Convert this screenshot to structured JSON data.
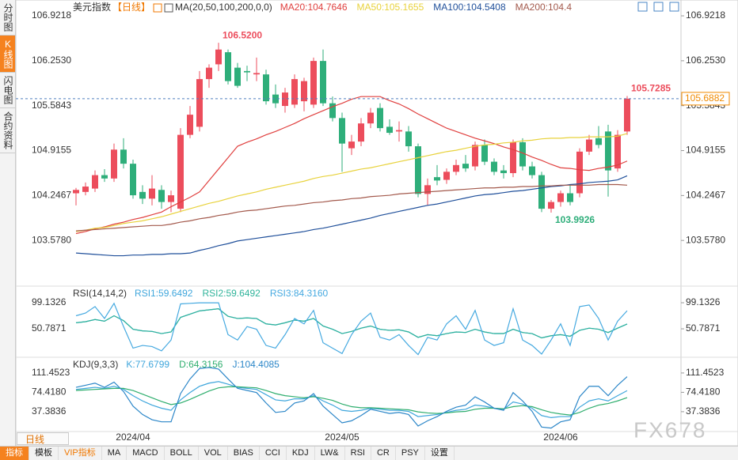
{
  "ui": {
    "symbol": "美元指数",
    "period": "【日线】",
    "sidebar": [
      "分时图",
      "K线图",
      "闪电图",
      "合约资料"
    ],
    "period_selector": "日线",
    "watermark": "FX678",
    "toolbar": [
      "指标",
      "模板",
      "VIP指标",
      "MA",
      "MACD",
      "BOLL",
      "VOL",
      "BIAS",
      "CCI",
      "KDJ",
      "LW&",
      "RSI",
      "CR",
      "PSY",
      "设置"
    ]
  },
  "chart_data": [
    {
      "type": "candlestick",
      "title": "MA(20,50,100,200,0,0)",
      "up_color": "#ec4d5c",
      "down_color": "#2eae7a",
      "categories": [
        null,
        null,
        null,
        null,
        null,
        null,
        "2024/04",
        null,
        null,
        null,
        null,
        null,
        null,
        null,
        null,
        null,
        null,
        null,
        null,
        null,
        null,
        null,
        null,
        null,
        null,
        null,
        null,
        null,
        "2024/05",
        null,
        null,
        null,
        null,
        null,
        null,
        null,
        null,
        null,
        null,
        null,
        null,
        null,
        null,
        null,
        null,
        null,
        null,
        null,
        null,
        null,
        null,
        "2024/06",
        null,
        null,
        null,
        null,
        null,
        null,
        null
      ],
      "open": [
        104.28,
        104.3,
        104.35,
        104.55,
        104.5,
        104.93,
        104.72,
        104.3,
        104.2,
        104.33,
        104.15,
        104.05,
        105.15,
        105.27,
        105.98,
        106.2,
        106.38,
        106.15,
        106.1,
        106.05,
        106.05,
        105.75,
        105.58,
        105.6,
        105.65,
        105.6,
        106.25,
        105.62,
        105.4,
        104.95,
        105.05,
        105.32,
        105.55,
        105.27,
        105.2,
        105.2,
        104.98,
        104.27,
        104.52,
        104.48,
        104.6,
        104.72,
        104.68,
        105.0,
        104.75,
        104.62,
        104.58,
        105.04,
        104.68,
        104.55,
        104.05,
        104.15,
        104.28,
        104.28,
        104.9,
        105.1,
        105.2,
        104.65,
        105.2
      ],
      "high": [
        104.36,
        104.44,
        104.62,
        104.64,
        105.02,
        105.1,
        104.78,
        104.4,
        104.55,
        104.4,
        104.32,
        105.25,
        105.58,
        106.1,
        106.2,
        106.52,
        106.42,
        106.22,
        106.18,
        106.3,
        106.12,
        105.9,
        105.85,
        106.05,
        106.0,
        106.3,
        106.42,
        105.72,
        105.48,
        105.15,
        105.4,
        105.55,
        105.62,
        105.38,
        105.35,
        105.28,
        105.02,
        104.5,
        104.7,
        104.65,
        104.78,
        104.85,
        105.05,
        105.08,
        104.8,
        104.7,
        105.08,
        105.1,
        104.75,
        104.6,
        104.18,
        104.32,
        104.4,
        104.95,
        105.15,
        105.28,
        105.3,
        105.22,
        105.7285
      ],
      "low": [
        104.1,
        104.25,
        104.3,
        104.45,
        104.45,
        104.65,
        104.2,
        104.12,
        104.1,
        104.05,
        104.0,
        104.0,
        105.1,
        105.2,
        105.85,
        106.1,
        105.9,
        105.85,
        105.95,
        105.95,
        105.6,
        105.55,
        105.48,
        105.55,
        105.5,
        105.55,
        105.58,
        105.35,
        104.6,
        104.85,
        104.98,
        105.25,
        105.2,
        105.15,
        105.05,
        104.9,
        104.22,
        104.1,
        104.4,
        104.42,
        104.55,
        104.6,
        104.62,
        104.7,
        104.55,
        104.5,
        104.52,
        104.62,
        104.5,
        104.0,
        103.9926,
        104.08,
        104.1,
        104.22,
        104.85,
        104.95,
        104.23,
        104.6,
        105.15
      ],
      "close": [
        104.33,
        104.38,
        104.55,
        104.5,
        104.93,
        104.72,
        104.25,
        104.2,
        104.35,
        104.15,
        104.25,
        105.15,
        105.45,
        105.98,
        106.15,
        106.42,
        105.95,
        105.88,
        106.08,
        106.07,
        105.65,
        105.62,
        105.78,
        105.98,
        105.95,
        106.25,
        105.62,
        105.4,
        105.02,
        105.05,
        105.32,
        105.48,
        105.25,
        105.18,
        105.22,
        104.98,
        104.27,
        104.4,
        104.47,
        104.6,
        104.7,
        104.65,
        105.0,
        104.75,
        104.6,
        104.58,
        105.04,
        104.68,
        104.55,
        104.05,
        104.15,
        104.28,
        104.15,
        104.9,
        105.08,
        105.0,
        104.62,
        105.15,
        105.6882
      ],
      "series": [
        {
          "name": "MA20:104.7646",
          "color": "#e0403f",
          "values": [
            103.68,
            103.71,
            103.75,
            103.78,
            103.82,
            103.85,
            103.89,
            103.92,
            103.96,
            104.0,
            104.08,
            104.15,
            104.22,
            104.3,
            104.47,
            104.64,
            104.81,
            104.98,
            105.04,
            105.09,
            105.15,
            105.2,
            105.26,
            105.32,
            105.39,
            105.45,
            105.51,
            105.57,
            105.62,
            105.68,
            105.72,
            105.72,
            105.72,
            105.66,
            105.61,
            105.54,
            105.46,
            105.39,
            105.32,
            105.25,
            105.2,
            105.15,
            105.1,
            105.06,
            105.02,
            104.97,
            104.93,
            104.88,
            104.82,
            104.77,
            104.71,
            104.66,
            104.65,
            104.63,
            104.62,
            104.65,
            104.67,
            104.7,
            104.76
          ]
        },
        {
          "name": "MA50:105.1655",
          "color": "#e8d23c",
          "values": [
            103.71,
            103.73,
            103.76,
            103.77,
            103.8,
            103.83,
            103.85,
            103.87,
            103.9,
            103.93,
            103.97,
            104.01,
            104.05,
            104.09,
            104.13,
            104.16,
            104.2,
            104.24,
            104.27,
            104.3,
            104.34,
            104.37,
            104.4,
            104.43,
            104.46,
            104.5,
            104.53,
            104.55,
            104.58,
            104.61,
            104.64,
            104.66,
            104.69,
            104.72,
            104.75,
            104.78,
            104.81,
            104.84,
            104.87,
            104.9,
            104.92,
            104.95,
            104.98,
            105.0,
            105.01,
            105.03,
            105.04,
            105.06,
            105.07,
            105.09,
            105.1,
            105.1,
            105.11,
            105.11,
            105.12,
            105.12,
            105.12,
            105.13,
            105.17
          ]
        },
        {
          "name": "MA100:104.5408",
          "color": "#1f4f9a",
          "values": [
            103.39,
            103.38,
            103.37,
            103.36,
            103.35,
            103.35,
            103.36,
            103.36,
            103.37,
            103.37,
            103.38,
            103.38,
            103.39,
            103.43,
            103.46,
            103.5,
            103.53,
            103.57,
            103.59,
            103.61,
            103.63,
            103.65,
            103.67,
            103.69,
            103.71,
            103.74,
            103.76,
            103.79,
            103.82,
            103.85,
            103.88,
            103.91,
            103.95,
            103.98,
            104.01,
            104.04,
            104.07,
            104.1,
            104.12,
            104.15,
            104.18,
            104.21,
            104.24,
            104.26,
            104.27,
            104.29,
            104.31,
            104.32,
            104.34,
            104.36,
            104.38,
            104.39,
            104.41,
            104.42,
            104.44,
            104.45,
            104.46,
            104.48,
            104.54
          ]
        },
        {
          "name": "MA200:104.4",
          "color": "#a3594c",
          "values": [
            103.72,
            103.73,
            103.74,
            103.75,
            103.76,
            103.77,
            103.78,
            103.79,
            103.8,
            103.8,
            103.82,
            103.85,
            103.87,
            103.9,
            103.92,
            103.95,
            103.97,
            104.0,
            104.02,
            104.03,
            104.05,
            104.07,
            104.09,
            104.1,
            104.12,
            104.14,
            104.15,
            104.17,
            104.18,
            104.2,
            104.21,
            104.23,
            104.24,
            104.25,
            104.27,
            104.28,
            104.29,
            104.3,
            104.31,
            104.32,
            104.33,
            104.34,
            104.35,
            104.36,
            104.36,
            104.37,
            104.37,
            104.38,
            104.38,
            104.39,
            104.39,
            104.4,
            104.4,
            104.4,
            104.4,
            104.41,
            104.41,
            104.41,
            104.4
          ]
        }
      ],
      "ylim": [
        102.98,
        107.04
      ],
      "yticks": [
        106.9218,
        {
          "value": 106.253,
          "label": "106.2530"
        },
        105.5843,
        104.9155,
        104.2467,
        {
          "value": 103.578,
          "label": "103.5780"
        }
      ],
      "annotations": [
        {
          "value": 106.52,
          "label": "106.5200"
        },
        {
          "value": 103.9926,
          "label": "103.9926"
        },
        {
          "value": 105.7285,
          "label": "105.7285"
        }
      ],
      "last_price": 105.6882,
      "last_price_color": "#f08a00"
    },
    {
      "type": "line",
      "title": "RSI(14,14,2)",
      "ylim": [
        0,
        126
      ],
      "yticks": [
        99.1326,
        50.7871
      ],
      "series": [
        {
          "name": "RSI1:59.6492",
          "color": "#3fa6dc",
          "values": [
            62,
            64,
            68,
            65,
            75,
            66,
            50,
            47,
            46,
            42,
            45,
            72,
            78,
            84,
            86,
            88,
            74,
            70,
            71,
            70,
            60,
            58,
            62,
            67,
            65,
            70,
            56,
            50,
            42,
            46,
            52,
            56,
            50,
            48,
            49,
            45,
            35,
            40,
            38,
            42,
            45,
            44,
            50,
            45,
            42,
            42,
            50,
            44,
            42,
            34,
            38,
            40,
            37,
            48,
            52,
            50,
            44,
            52,
            59.6492
          ]
        },
        {
          "name": "RSI2:59.6492",
          "color": "#2fb39a",
          "values": [
            62,
            64,
            68,
            65,
            75,
            66,
            50,
            47,
            46,
            42,
            45,
            72,
            78,
            84,
            86,
            88,
            74,
            70,
            71,
            70,
            60,
            58,
            62,
            67,
            65,
            70,
            56,
            50,
            42,
            46,
            52,
            56,
            50,
            48,
            49,
            45,
            35,
            40,
            38,
            42,
            45,
            44,
            50,
            45,
            42,
            42,
            50,
            44,
            42,
            34,
            38,
            40,
            37,
            48,
            52,
            50,
            44,
            52,
            59.6492
          ]
        },
        {
          "name": "RSI3:84.3160",
          "color": "#45a9e0",
          "values": [
            75,
            80,
            92,
            70,
            98,
            55,
            15,
            20,
            18,
            10,
            30,
            97,
            98,
            99,
            99,
            99,
            40,
            30,
            55,
            50,
            20,
            15,
            40,
            70,
            60,
            85,
            25,
            15,
            5,
            40,
            65,
            80,
            35,
            30,
            40,
            20,
            3,
            35,
            30,
            60,
            75,
            50,
            85,
            30,
            20,
            25,
            88,
            30,
            20,
            4,
            30,
            60,
            20,
            92,
            95,
            70,
            30,
            65,
            84.316
          ]
        }
      ]
    },
    {
      "type": "line",
      "title": "KDJ(9,3,3)",
      "ylim": [
        0,
        137
      ],
      "yticks": [
        111.4523,
        {
          "value": 74.418,
          "label": "74.4180"
        },
        37.3836
      ],
      "series": [
        {
          "name": "K:77.6799",
          "color": "#3fa6dc",
          "values": [
            80,
            82,
            84,
            82,
            86,
            80,
            68,
            58,
            50,
            44,
            40,
            60,
            74,
            86,
            92,
            95,
            90,
            84,
            82,
            80,
            70,
            60,
            58,
            62,
            62,
            68,
            58,
            50,
            40,
            38,
            40,
            44,
            42,
            40,
            40,
            38,
            28,
            30,
            32,
            36,
            40,
            42,
            50,
            48,
            44,
            42,
            56,
            52,
            44,
            30,
            26,
            28,
            28,
            46,
            58,
            62,
            58,
            68,
            77.6799
          ]
        },
        {
          "name": "D:64.3156",
          "color": "#2fae6e",
          "values": [
            78,
            79,
            80,
            81,
            82,
            82,
            78,
            71,
            64,
            57,
            51,
            54,
            61,
            69,
            77,
            83,
            85,
            85,
            84,
            83,
            78,
            72,
            68,
            66,
            64,
            66,
            63,
            59,
            52,
            47,
            45,
            45,
            44,
            43,
            42,
            41,
            37,
            35,
            34,
            35,
            37,
            38,
            42,
            44,
            44,
            43,
            47,
            49,
            47,
            41,
            36,
            33,
            31,
            36,
            44,
            50,
            53,
            58,
            64.3156
          ]
        },
        {
          "name": "J:104.4085",
          "color": "#2b86c8",
          "values": [
            84,
            88,
            92,
            84,
            94,
            76,
            48,
            32,
            22,
            18,
            18,
            72,
            100,
            120,
            122,
            119,
            100,
            82,
            78,
            74,
            54,
            36,
            38,
            54,
            58,
            72,
            48,
            32,
            16,
            20,
            30,
            42,
            38,
            34,
            36,
            32,
            10,
            20,
            28,
            38,
            46,
            50,
            66,
            56,
            44,
            40,
            74,
            58,
            38,
            8,
            6,
            18,
            22,
            66,
            86,
            86,
            68,
            88,
            104.4085
          ]
        }
      ]
    }
  ]
}
